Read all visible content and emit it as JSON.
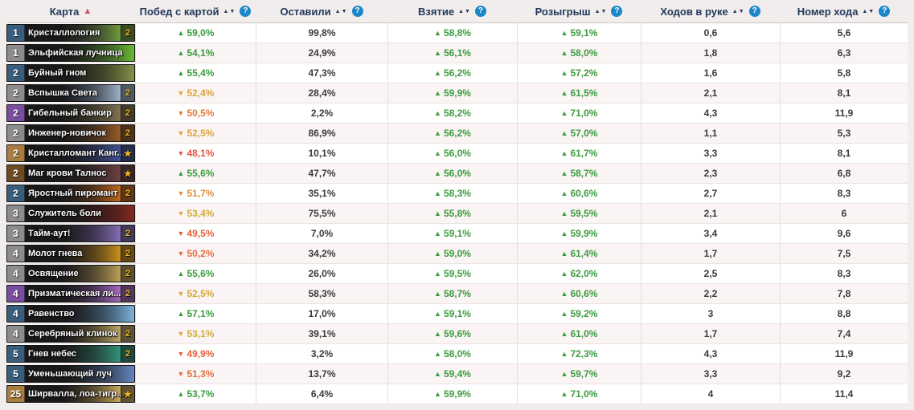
{
  "icons": {
    "sort_both": "▲▼",
    "sort_active_asc": "▲",
    "help": "?",
    "star": "★"
  },
  "colors": {
    "green": "#3c9b3f",
    "header_text": "#23395b",
    "active_sort": "#c9556a",
    "help_bg": "#1b87c9",
    "gold": "#f3b61d"
  },
  "table": {
    "columns": [
      {
        "label": "Карта",
        "sort": "asc",
        "help": false
      },
      {
        "label": "Побед с картой",
        "sort": "none",
        "help": true
      },
      {
        "label": "Оставили",
        "sort": "none",
        "help": true
      },
      {
        "label": "Взятие",
        "sort": "none",
        "help": true
      },
      {
        "label": "Розыгрыш",
        "sort": "none",
        "help": true
      },
      {
        "label": "Ходов в руке",
        "sort": "none",
        "help": true
      },
      {
        "label": "Номер хода",
        "sort": "none",
        "help": true
      }
    ],
    "rows": [
      {
        "cost": "1",
        "rarity_color": "#3b5d7c",
        "name": "Кристаллология",
        "badge": "2",
        "wins": "59,0%",
        "wins_dir": "up",
        "wins_color": "#3c9b3f",
        "kept": "99,8%",
        "drawn": "58,8%",
        "played": "59,1%",
        "hand": "0,6",
        "turn": "5,6",
        "art": [
          "#3d2a4e",
          "#7bb43a"
        ]
      },
      {
        "cost": "1",
        "rarity_color": "#8c8c8c",
        "name": "Эльфийская лучница",
        "badge": null,
        "wins": "54,1%",
        "wins_dir": "up",
        "wins_color": "#3c9b3f",
        "kept": "24,9%",
        "drawn": "56,1%",
        "played": "58,0%",
        "hand": "1,8",
        "turn": "6,3",
        "art": [
          "#2f4a1e",
          "#6fc437"
        ]
      },
      {
        "cost": "2",
        "rarity_color": "#3b5d7c",
        "name": "Буйный гном",
        "badge": null,
        "wins": "55,4%",
        "wins_dir": "up",
        "wins_color": "#3c9b3f",
        "kept": "47,3%",
        "drawn": "56,2%",
        "played": "57,2%",
        "hand": "1,6",
        "turn": "5,8",
        "art": [
          "#3e3a22",
          "#8a9a4a"
        ]
      },
      {
        "cost": "2",
        "rarity_color": "#8c8c8c",
        "name": "Вспышка Света",
        "badge": "2",
        "wins": "52,4%",
        "wins_dir": "down",
        "wins_color": "#d9a43a",
        "kept": "28,4%",
        "drawn": "59,9%",
        "played": "61,5%",
        "hand": "2,1",
        "turn": "8,1",
        "art": [
          "#2c3e5c",
          "#b9cde3"
        ]
      },
      {
        "cost": "2",
        "rarity_color": "#7b4da0",
        "name": "Гибельный банкир",
        "badge": "2",
        "wins": "50,5%",
        "wins_dir": "down",
        "wins_color": "#e07a40",
        "kept": "2,2%",
        "drawn": "58,2%",
        "played": "71,0%",
        "hand": "4,3",
        "turn": "11,9",
        "art": [
          "#32302a",
          "#97845a"
        ]
      },
      {
        "cost": "2",
        "rarity_color": "#8c8c8c",
        "name": "Инженер-новичок",
        "badge": "2",
        "wins": "52,5%",
        "wins_dir": "down",
        "wins_color": "#d9a43a",
        "kept": "86,9%",
        "drawn": "56,2%",
        "played": "57,0%",
        "hand": "1,1",
        "turn": "5,3",
        "art": [
          "#2c2218",
          "#b06a2a"
        ]
      },
      {
        "cost": "2",
        "rarity_color": "#a97d3f",
        "name": "Кристалломант Канг...",
        "badge": "star",
        "wins": "48,1%",
        "wins_dir": "down",
        "wins_color": "#e25543",
        "kept": "10,1%",
        "drawn": "56,0%",
        "played": "61,7%",
        "hand": "3,3",
        "turn": "8,1",
        "art": [
          "#241f3e",
          "#4a5fae"
        ]
      },
      {
        "cost": "2",
        "rarity_color": "#6e4b22",
        "name": "Маг крови Талнос",
        "badge": "star",
        "wins": "55,6%",
        "wins_dir": "up",
        "wins_color": "#3c9b3f",
        "kept": "47,7%",
        "drawn": "56,0%",
        "played": "58,7%",
        "hand": "2,3",
        "turn": "6,8",
        "art": [
          "#2a2026",
          "#7c4a4a"
        ]
      },
      {
        "cost": "2",
        "rarity_color": "#3b5d7c",
        "name": "Яростный пиромант",
        "badge": "2",
        "wins": "51,7%",
        "wins_dir": "down",
        "wins_color": "#db923d",
        "kept": "35,1%",
        "drawn": "58,3%",
        "played": "60,6%",
        "hand": "2,7",
        "turn": "8,3",
        "art": [
          "#3a1d0e",
          "#e07a22"
        ]
      },
      {
        "cost": "3",
        "rarity_color": "#8c8c8c",
        "name": "Служитель боли",
        "badge": null,
        "wins": "53,4%",
        "wins_dir": "down",
        "wins_color": "#d2ab39",
        "kept": "75,5%",
        "drawn": "55,8%",
        "played": "59,5%",
        "hand": "2,1",
        "turn": "6",
        "art": [
          "#261214",
          "#8a2a22"
        ]
      },
      {
        "cost": "3",
        "rarity_color": "#8c8c8c",
        "name": "Тайм-аут!",
        "badge": "2",
        "wins": "49,5%",
        "wins_dir": "down",
        "wins_color": "#e2623f",
        "kept": "7,0%",
        "drawn": "59,1%",
        "played": "59,9%",
        "hand": "3,4",
        "turn": "9,6",
        "art": [
          "#31284a",
          "#9a7fd0"
        ]
      },
      {
        "cost": "4",
        "rarity_color": "#8c8c8c",
        "name": "Молот гнева",
        "badge": "2",
        "wins": "50,2%",
        "wins_dir": "down",
        "wins_color": "#e07040",
        "kept": "34,2%",
        "drawn": "59,0%",
        "played": "61,4%",
        "hand": "1,7",
        "turn": "7,5",
        "art": [
          "#4a3010",
          "#e8a820"
        ]
      },
      {
        "cost": "4",
        "rarity_color": "#8c8c8c",
        "name": "Освящение",
        "badge": "2",
        "wins": "55,6%",
        "wins_dir": "up",
        "wins_color": "#3c9b3f",
        "kept": "26,0%",
        "drawn": "59,5%",
        "played": "62,0%",
        "hand": "2,5",
        "turn": "8,3",
        "art": [
          "#4a3a20",
          "#d8b868"
        ]
      },
      {
        "cost": "4",
        "rarity_color": "#7b4da0",
        "name": "Призматическая ли...",
        "badge": "2",
        "wins": "52,5%",
        "wins_dir": "down",
        "wins_color": "#d9a43a",
        "kept": "58,3%",
        "drawn": "58,7%",
        "played": "60,6%",
        "hand": "2,2",
        "turn": "7,8",
        "art": [
          "#38244e",
          "#c07ad8"
        ]
      },
      {
        "cost": "4",
        "rarity_color": "#3b5d7c",
        "name": "Равенство",
        "badge": null,
        "wins": "57,1%",
        "wins_dir": "up",
        "wins_color": "#3c9b3f",
        "kept": "17,0%",
        "drawn": "59,1%",
        "played": "59,2%",
        "hand": "3",
        "turn": "8,8",
        "art": [
          "#2a3a58",
          "#80bce8"
        ]
      },
      {
        "cost": "4",
        "rarity_color": "#8c8c8c",
        "name": "Серебряный клинок",
        "badge": "2",
        "wins": "53,1%",
        "wins_dir": "down",
        "wins_color": "#d2ab39",
        "kept": "39,1%",
        "drawn": "59,6%",
        "played": "61,0%",
        "hand": "1,7",
        "turn": "7,4",
        "art": [
          "#473618",
          "#d8c078"
        ]
      },
      {
        "cost": "5",
        "rarity_color": "#3b5d7c",
        "name": "Гнев небес",
        "badge": "2",
        "wins": "49,9%",
        "wins_dir": "down",
        "wins_color": "#e2623f",
        "kept": "3,2%",
        "drawn": "58,0%",
        "played": "72,3%",
        "hand": "4,3",
        "turn": "11,9",
        "art": [
          "#1e3a34",
          "#3aa88a"
        ]
      },
      {
        "cost": "5",
        "rarity_color": "#3b5d7c",
        "name": "Уменьшающий луч",
        "badge": null,
        "wins": "51,3%",
        "wins_dir": "down",
        "wins_color": "#e07040",
        "kept": "13,7%",
        "drawn": "59,4%",
        "played": "59,7%",
        "hand": "3,3",
        "turn": "9,2",
        "art": [
          "#243048",
          "#6a8cc8"
        ]
      },
      {
        "cost": "25",
        "rarity_color": "#a97d3f",
        "name": "Ширвалла, лоа-тигр...",
        "badge": "star",
        "wins": "53,7%",
        "wins_dir": "up",
        "wins_color": "#3c9b3f",
        "kept": "6,4%",
        "drawn": "59,9%",
        "played": "71,0%",
        "hand": "4",
        "turn": "11,4",
        "art": [
          "#46351a",
          "#e8c468"
        ]
      }
    ]
  }
}
